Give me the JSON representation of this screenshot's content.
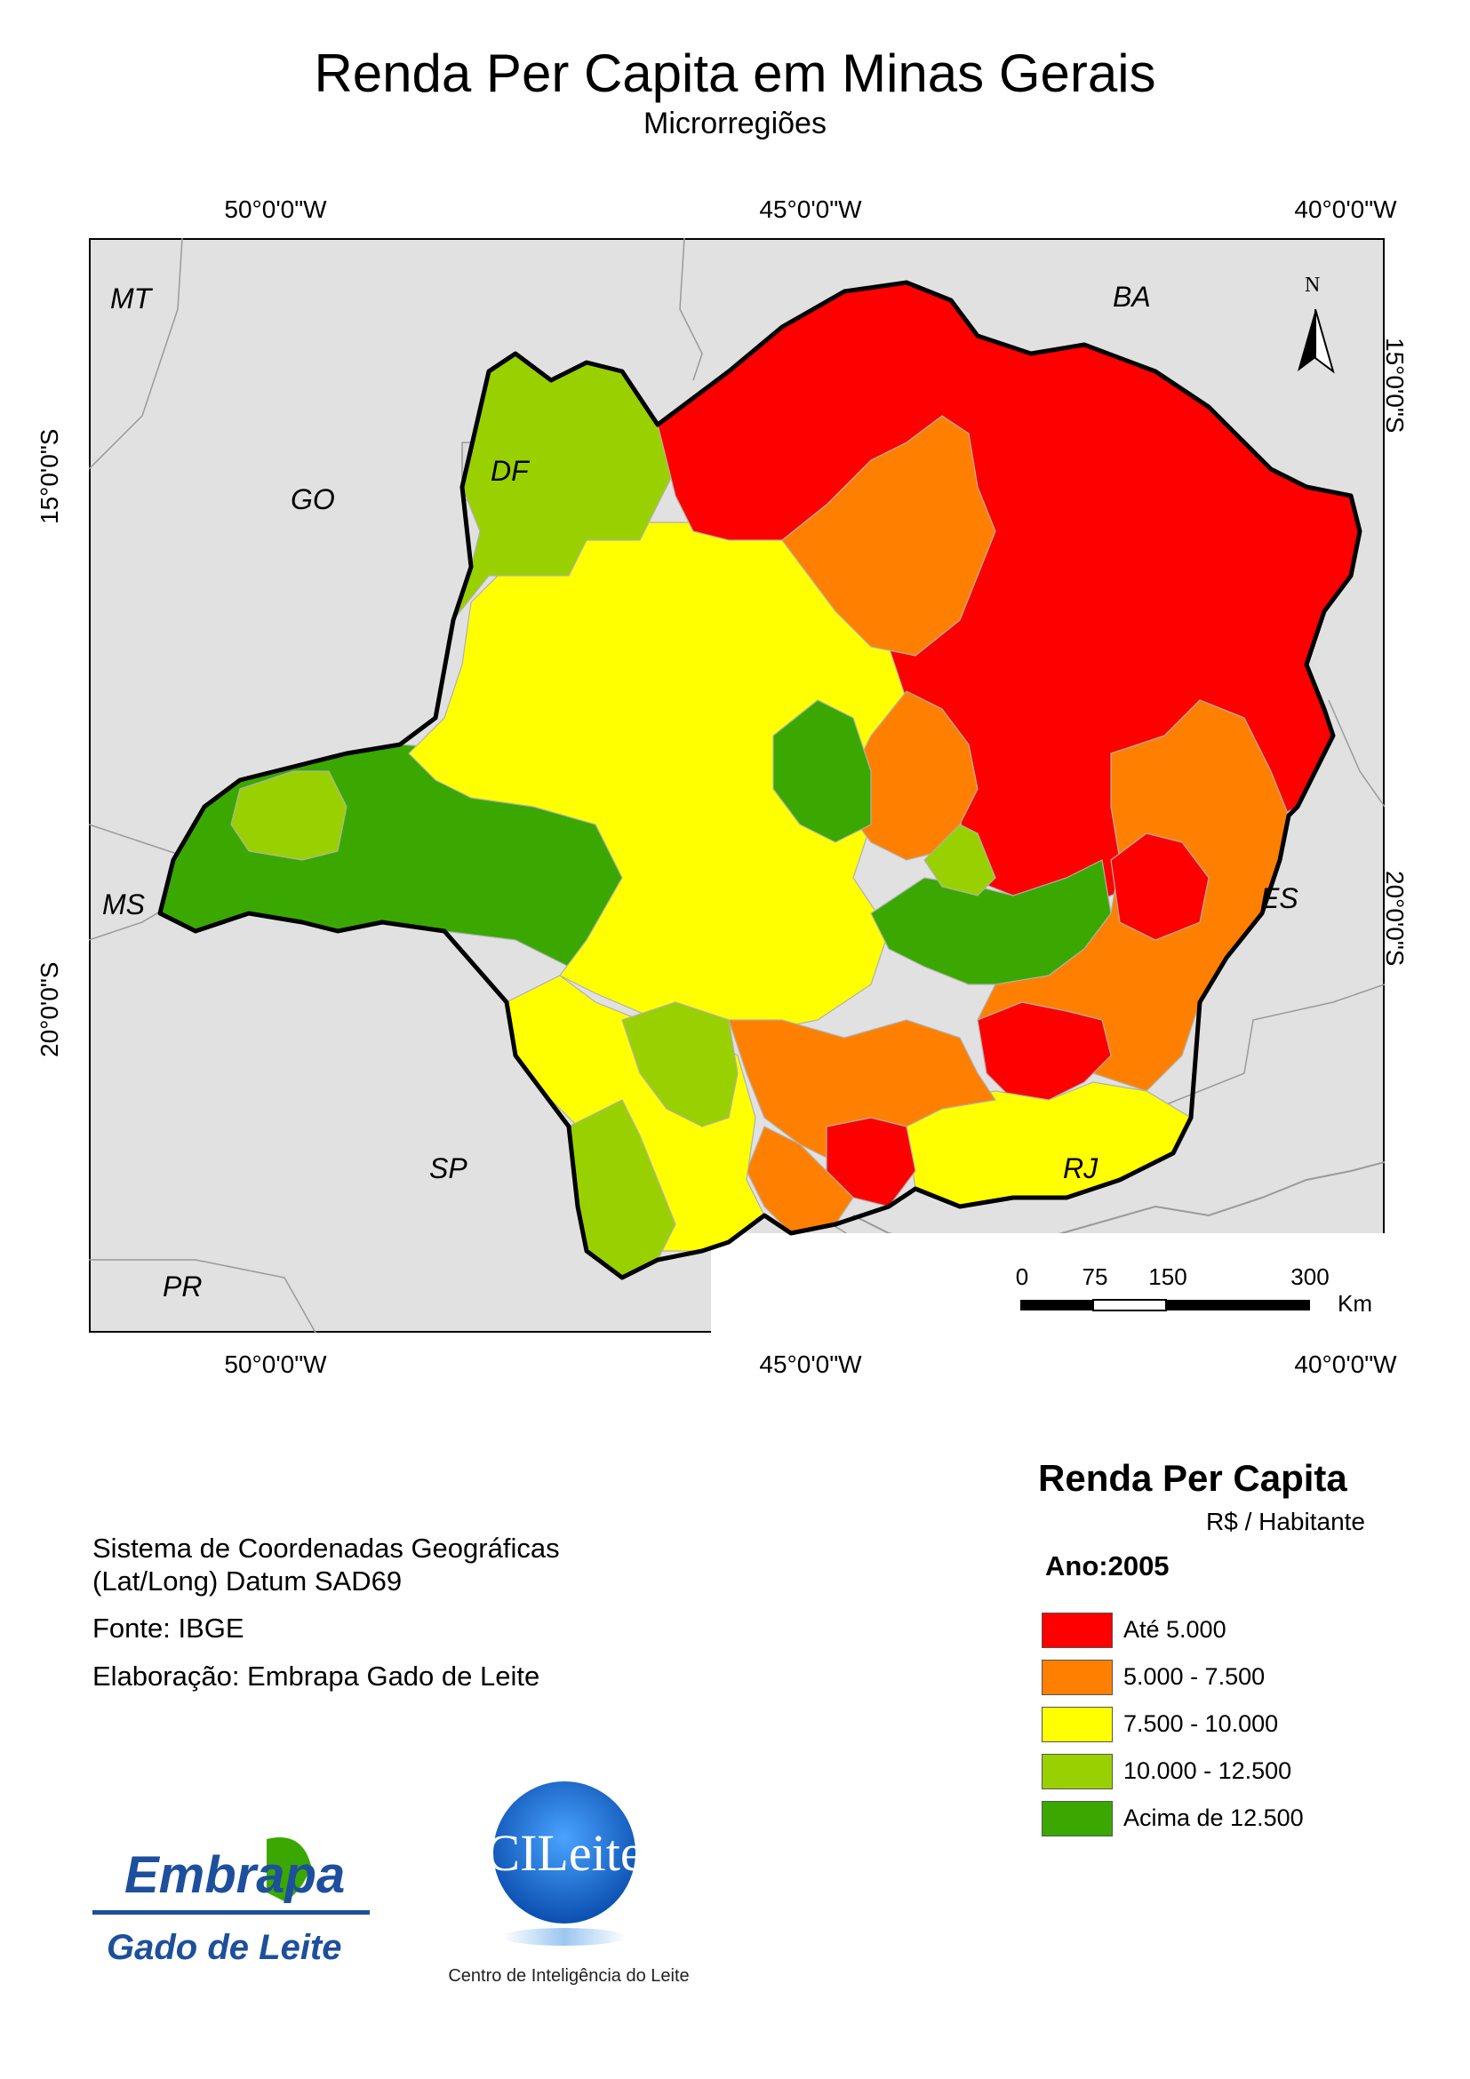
{
  "title": "Renda Per Capita em Minas Gerais",
  "subtitle": "Microrregiões",
  "axes": {
    "top": [
      "50°0'0\"W",
      "45°0'0\"W",
      "40°0'0\"W"
    ],
    "bottom": [
      "50°0'0\"W",
      "45°0'0\"W",
      "40°0'0\"W"
    ],
    "left": [
      "15°0'0\"S",
      "20°0'0\"S"
    ],
    "right": [
      "15°0'0\"S",
      "20°0'0\"S"
    ]
  },
  "states": [
    "MT",
    "BA",
    "GO",
    "DF",
    "MS",
    "ES",
    "SP",
    "RJ",
    "PR"
  ],
  "north_arrow": {
    "label": "N",
    "icon": "north-arrow-icon"
  },
  "scale_bar": {
    "labels": [
      "0",
      "75",
      "150",
      "300"
    ],
    "unit": "Km"
  },
  "info": {
    "crs_line1": "Sistema de Coordenadas Geográficas",
    "crs_line2": "(Lat/Long) Datum SAD69",
    "source": "Fonte: IBGE",
    "author": "Elaboração: Embrapa Gado de Leite"
  },
  "legend": {
    "title": "Renda Per Capita",
    "unit": "R$ / Habitante",
    "year": "Ano:2005",
    "items": [
      {
        "label": "Até 5.000",
        "color": "#ff0000"
      },
      {
        "label": "5.000 - 7.500",
        "color": "#ff8000"
      },
      {
        "label": "7.500 - 10.000",
        "color": "#ffff00"
      },
      {
        "label": "10.000 - 12.500",
        "color": "#99d100"
      },
      {
        "label": "Acima de 12.500",
        "color": "#3aa800"
      }
    ]
  },
  "logos": {
    "embrapa_name": "Embrapa",
    "embrapa_sub": "Gado de Leite",
    "cileite_name": "CILeite",
    "cileite_sub": "Centro de Inteligência do Leite"
  },
  "colors": {
    "background_states": "#e1e1e1",
    "border": "#000000",
    "embrapa_blue": "#1d4f9c",
    "cileite_blue": "#1b6fd0"
  }
}
